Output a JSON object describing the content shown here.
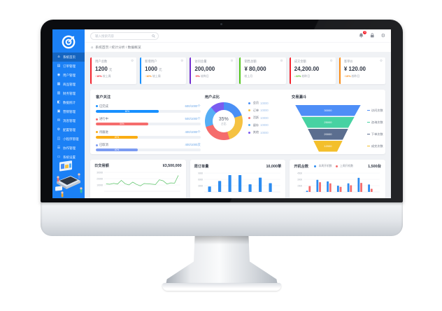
{
  "header": {
    "search_placeholder": "输入搜索内容",
    "notification_badge": "5"
  },
  "breadcrumb": {
    "items": [
      "系统首页",
      "统计分析",
      "数据概览"
    ]
  },
  "sidebar": {
    "items": [
      {
        "label": "系统首页",
        "icon": "home-icon",
        "glyph": "⌂",
        "active": true
      },
      {
        "label": "订单管理",
        "icon": "document-icon",
        "glyph": "▤",
        "active": false
      },
      {
        "label": "用户管理",
        "icon": "user-icon",
        "glyph": "◉",
        "active": false
      },
      {
        "label": "商品管理",
        "icon": "briefcase-icon",
        "glyph": "▦",
        "active": false
      },
      {
        "label": "财务管理",
        "icon": "card-icon",
        "glyph": "▥",
        "active": false
      },
      {
        "label": "数据统计",
        "icon": "chart-icon",
        "glyph": "◧",
        "active": false
      },
      {
        "label": "营销管理",
        "icon": "gift-icon",
        "glyph": "▣",
        "active": false
      },
      {
        "label": "消息管理",
        "icon": "message-icon",
        "glyph": "✉",
        "active": false
      },
      {
        "label": "配置管理",
        "icon": "gear-icon",
        "glyph": "⚙",
        "active": false
      },
      {
        "label": "小程序管理",
        "icon": "grid-icon",
        "glyph": "◫",
        "active": false
      },
      {
        "label": "协作管理",
        "icon": "list-icon",
        "glyph": "☰",
        "active": false
      },
      {
        "label": "系统设置",
        "icon": "monitor-icon",
        "glyph": "▭",
        "active": false
      }
    ]
  },
  "kpis": [
    {
      "title": "用户总数",
      "value": "1200",
      "unit": "元",
      "delta": "↑10%",
      "delta_color": "#f5222d",
      "note": "较上周",
      "accent": "#f5222d"
    },
    {
      "title": "新增用户",
      "value": "1000",
      "unit": "元",
      "delta": "↑10%",
      "delta_color": "#fa8c16",
      "note": "较上周",
      "accent": "#1890ff"
    },
    {
      "title": "访问总量",
      "value": "200,000",
      "unit": "",
      "delta": "↑5%",
      "delta_color": "#f5222d",
      "note": "较昨日",
      "accent": "#722ed1"
    },
    {
      "title": "销售总额",
      "value": "¥ 80,000",
      "unit": "",
      "delta": "",
      "delta_color": "#52c41a",
      "note": "较上月",
      "accent": "#52c41a"
    },
    {
      "title": "成交金额",
      "value": "24,200.00",
      "unit": "",
      "delta": "↓22%",
      "delta_color": "#52c41a",
      "note": "较昨日",
      "accent": "#f5222d"
    },
    {
      "title": "客单价",
      "value": "¥ 120.00",
      "unit": "",
      "delta": "↑10%",
      "delta_color": "#fa8c16",
      "note": "较昨日",
      "accent": "#fa8c16"
    }
  ],
  "mid_titles": {
    "progress": "客户关注",
    "donut": "用户占比",
    "funnel": "交易漏斗"
  },
  "donut_center": {
    "pct": "35%",
    "label": "占比"
  },
  "bottom_cards": {
    "daily": {
      "title": "日交易额",
      "value": "¥3,500,000"
    },
    "weekly": {
      "title": "周订单量",
      "value": "10,000单"
    },
    "devices": {
      "title": "开机台数",
      "value": "1,500台",
      "legend": [
        {
          "label": "本周开机数",
          "color": "#2d8cf0"
        },
        {
          "label": "上周开机数",
          "color": "#f56c6c"
        }
      ]
    }
  },
  "chart_data": [
    {
      "id": "progress-bars",
      "type": "bar",
      "rows": [
        {
          "label": "已完成",
          "value": "600/1000个",
          "pct": 60,
          "color": "#1890ff"
        },
        {
          "label": "进行中",
          "value": "500/1000个",
          "pct": 50,
          "color": "#f56c6c"
        },
        {
          "label": "待跟进",
          "value": "400/1000个",
          "pct": 40,
          "color": "#faad14"
        },
        {
          "label": "已取消",
          "value": "400/1000次",
          "pct": 40,
          "color": "#7c9bf2"
        }
      ]
    },
    {
      "id": "user-share-donut",
      "type": "pie",
      "title": "用户占比",
      "slices": [
        {
          "label": "会员",
          "legend_value": "10000",
          "pct": 20,
          "color": "#4a8ff5"
        },
        {
          "label": "订单",
          "legend_value": "10000",
          "pct": 25,
          "color": "#f5c242"
        },
        {
          "label": "活跃",
          "legend_value": "10000",
          "pct": 25,
          "color": "#f56c6c"
        },
        {
          "label": "留存",
          "legend_value": "10000",
          "pct": 18,
          "color": "#55aef5"
        },
        {
          "label": "其他",
          "legend_value": "10000",
          "pct": 12,
          "color": "#7a5cf0"
        }
      ],
      "center": {
        "pct": "35%",
        "label": "占比"
      }
    },
    {
      "id": "trade-funnel",
      "type": "funnel",
      "title": "交易漏斗",
      "layers": [
        {
          "label": "访问次数",
          "value": "30000",
          "color": "#4e8ef7",
          "top_w": 94,
          "bot_w": 76
        },
        {
          "label": "咨询次数",
          "value": "25000",
          "color": "#47d2a2",
          "top_w": 76,
          "bot_w": 58
        },
        {
          "label": "下单次数",
          "value": "20000",
          "color": "#5b6e8f",
          "top_w": 58,
          "bot_w": 42
        },
        {
          "label": "成交次数",
          "value": "12000",
          "color": "#f3bf2b",
          "top_w": 42,
          "bot_w": 26
        }
      ]
    },
    {
      "id": "daily-trade-line",
      "type": "line",
      "title": "日交易额",
      "color": "#5cc469",
      "yticks": [
        "30000",
        "20000",
        "10000"
      ],
      "ylim": [
        0,
        30000
      ],
      "values": [
        12500,
        12000,
        13500,
        12200,
        18500,
        12800,
        10800,
        15500,
        11800,
        9200,
        13200,
        12800,
        12100,
        11600,
        19500,
        17800,
        12300,
        14200,
        13800,
        27000
      ]
    },
    {
      "id": "weekly-orders-bar",
      "type": "bar",
      "title": "周订单量",
      "color": "#2d8cf0",
      "yticks": [
        "9000",
        "6000",
        "3000"
      ],
      "ylim": [
        0,
        9000
      ],
      "values": [
        2800,
        5600,
        8600,
        8600,
        3900,
        7300,
        4500
      ]
    },
    {
      "id": "device-grouped-bar",
      "type": "bar",
      "title": "开机台数",
      "yticks": [
        "4500",
        "3000",
        "1500"
      ],
      "ylim": [
        0,
        4500
      ],
      "series": [
        {
          "name": "本周开机数",
          "color": "#2d8cf0",
          "values": [
            300,
            3100,
            2700,
            1600,
            2200,
            3600,
            1900
          ]
        },
        {
          "name": "上周开机数",
          "color": "#f56c6c",
          "values": [
            1500,
            2500,
            2200,
            1300,
            1700,
            2300,
            800
          ]
        }
      ]
    }
  ]
}
